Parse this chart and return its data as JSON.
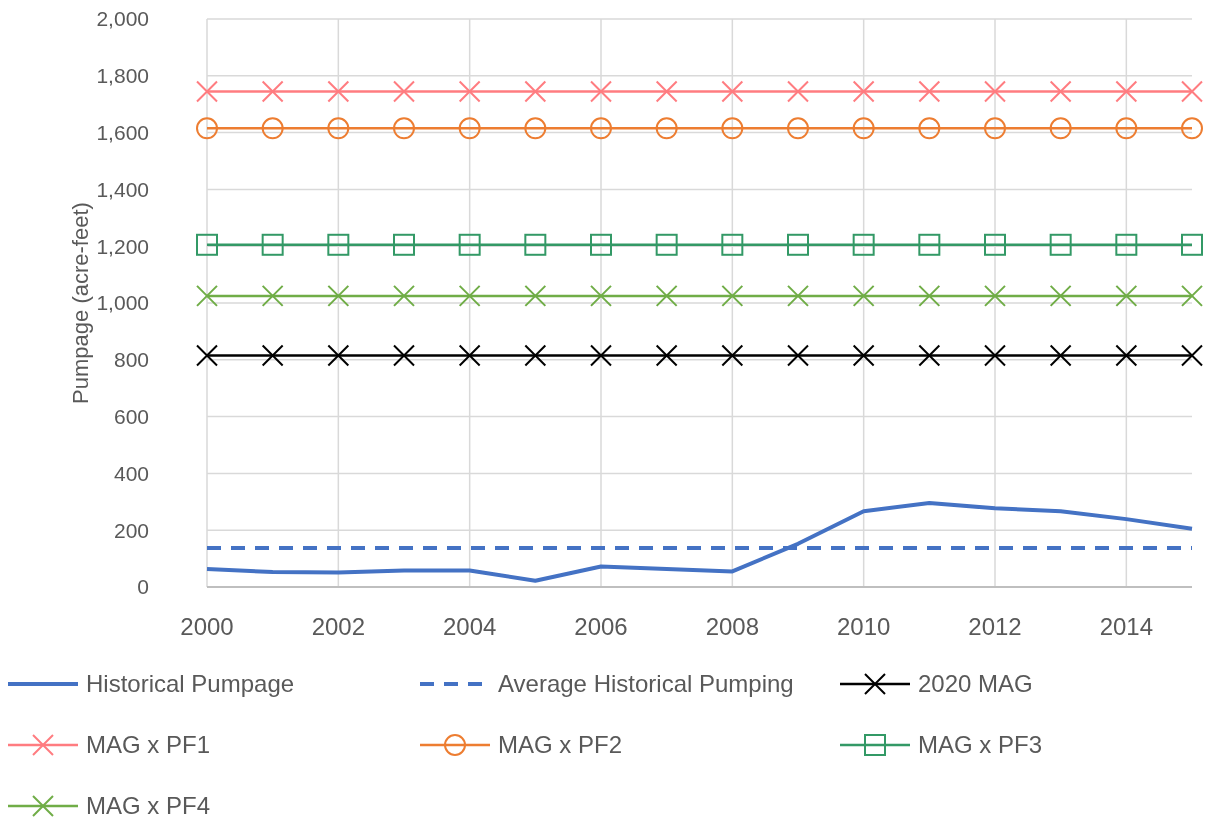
{
  "chart_data": {
    "type": "line",
    "ylabel": "Pumpage (acre-feet)",
    "x": [
      2000,
      2001,
      2002,
      2003,
      2004,
      2005,
      2006,
      2007,
      2008,
      2009,
      2010,
      2011,
      2012,
      2013,
      2014,
      2015
    ],
    "xlim": [
      2000,
      2015
    ],
    "xticks": [
      2000,
      2002,
      2004,
      2006,
      2008,
      2010,
      2012,
      2014
    ],
    "ylim": [
      0,
      2000
    ],
    "yticks": [
      {
        "value": 0,
        "label": "0"
      },
      {
        "value": 200,
        "label": "200"
      },
      {
        "value": 400,
        "label": "400"
      },
      {
        "value": 600,
        "label": "600"
      },
      {
        "value": 800,
        "label": "800"
      },
      {
        "value": 1000,
        "label": "1,000"
      },
      {
        "value": 1200,
        "label": "1,200"
      },
      {
        "value": 1400,
        "label": "1,400"
      },
      {
        "value": 1600,
        "label": "1,600"
      },
      {
        "value": 1800,
        "label": "1,800"
      },
      {
        "value": 2000,
        "label": "2,000"
      }
    ],
    "grid": true,
    "legend": "bottom",
    "series": [
      {
        "name": "Historical Pumpage",
        "color": "#4472c4",
        "marker": "none",
        "line_style": "solid",
        "values": [
          63,
          53,
          51,
          58,
          58,
          22,
          72,
          63,
          55,
          152,
          267,
          296,
          277,
          267,
          239,
          205
        ]
      },
      {
        "name": "Average Historical Pumping",
        "color": "#4472c4",
        "marker": "none",
        "line_style": "dashed",
        "values": [
          137,
          137,
          137,
          137,
          137,
          137,
          137,
          137,
          137,
          137,
          137,
          137,
          137,
          137,
          137,
          137
        ]
      },
      {
        "name": "2020 MAG",
        "color": "#000000",
        "marker": "cross",
        "line_style": "solid",
        "values": [
          815,
          815,
          815,
          815,
          815,
          815,
          815,
          815,
          815,
          815,
          815,
          815,
          815,
          815,
          815,
          815
        ]
      },
      {
        "name": "MAG x PF1",
        "color": "#ff7c80",
        "marker": "cross",
        "line_style": "solid",
        "values": [
          1745,
          1745,
          1745,
          1745,
          1745,
          1745,
          1745,
          1745,
          1745,
          1745,
          1745,
          1745,
          1745,
          1745,
          1745,
          1745
        ]
      },
      {
        "name": "MAG x PF2",
        "color": "#ed7d31",
        "marker": "circle",
        "line_style": "solid",
        "values": [
          1615,
          1615,
          1615,
          1615,
          1615,
          1615,
          1615,
          1615,
          1615,
          1615,
          1615,
          1615,
          1615,
          1615,
          1615,
          1615
        ]
      },
      {
        "name": "MAG x PF3",
        "color": "#339966",
        "marker": "square",
        "line_style": "solid",
        "values": [
          1205,
          1205,
          1205,
          1205,
          1205,
          1205,
          1205,
          1205,
          1205,
          1205,
          1205,
          1205,
          1205,
          1205,
          1205,
          1205
        ]
      },
      {
        "name": "MAG x PF4",
        "color": "#70ad47",
        "marker": "cross",
        "line_style": "solid",
        "values": [
          1025,
          1025,
          1025,
          1025,
          1025,
          1025,
          1025,
          1025,
          1025,
          1025,
          1025,
          1025,
          1025,
          1025,
          1025,
          1025
        ]
      }
    ]
  }
}
